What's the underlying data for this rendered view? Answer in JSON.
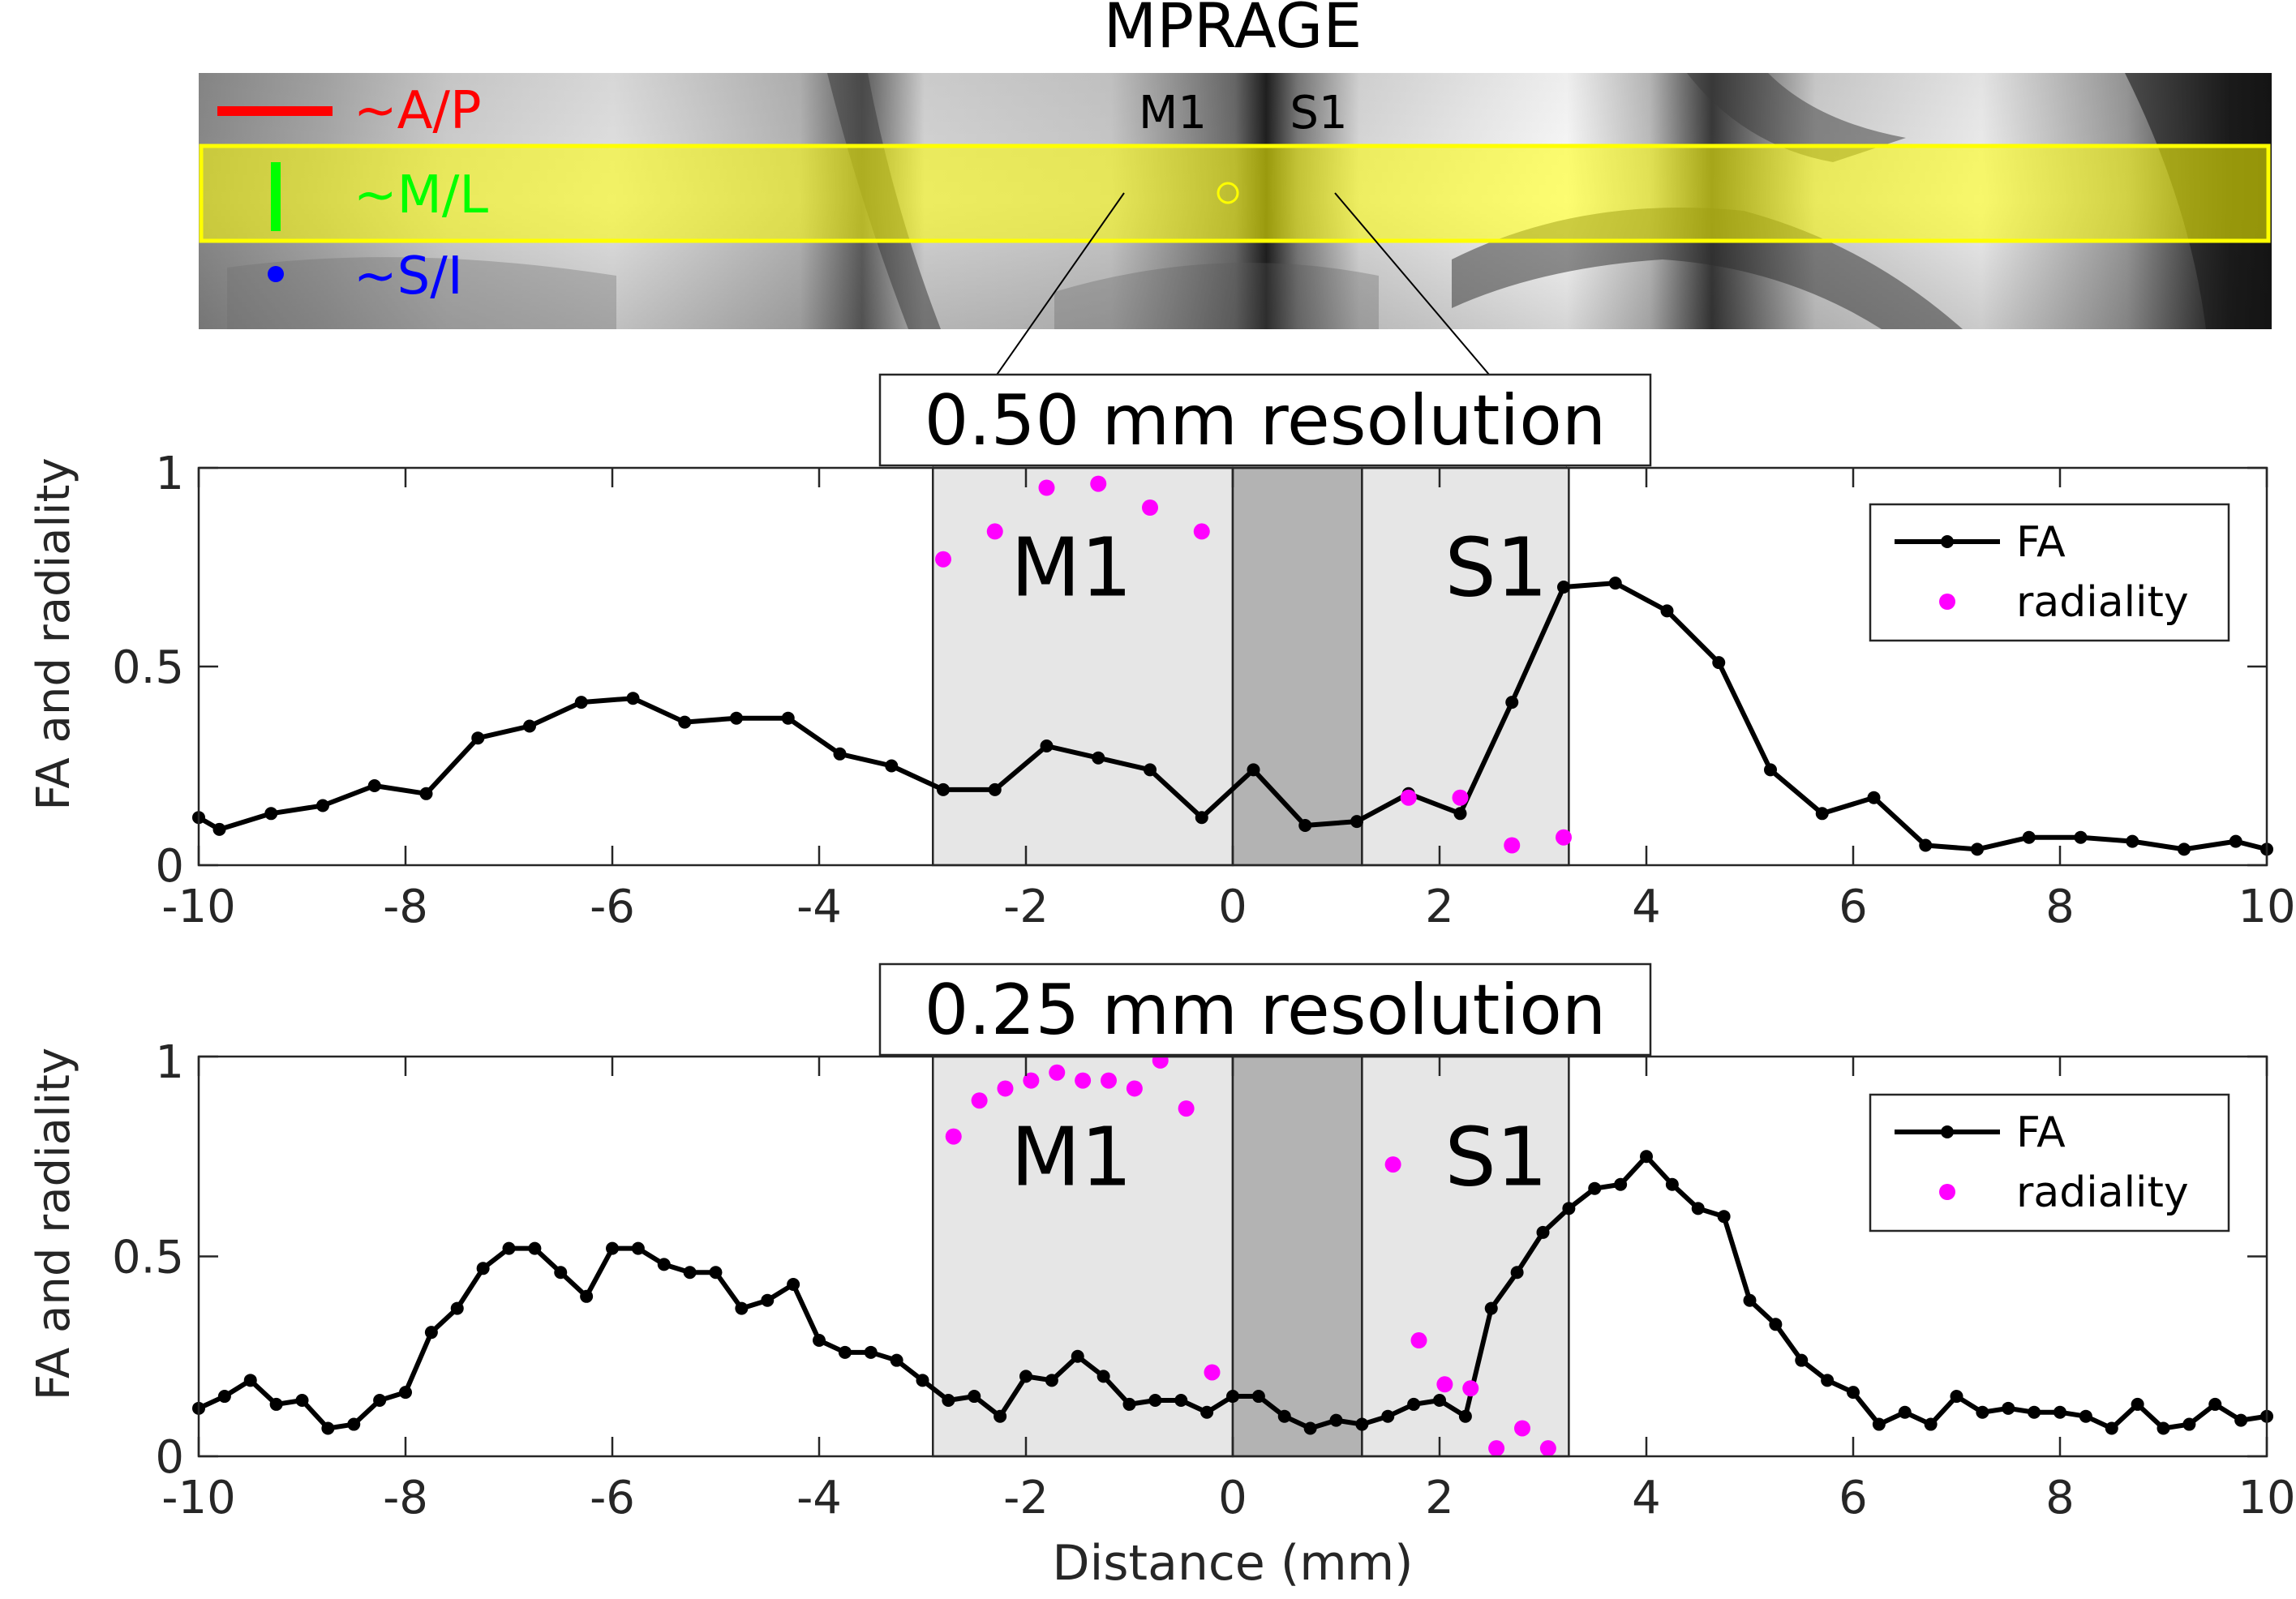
{
  "figure": {
    "mprage_title": "MPRAGE",
    "inset_labels": {
      "m1": "M1",
      "s1": "S1"
    },
    "orientation_legend": [
      {
        "label": "~A/P",
        "color": "#ff0000",
        "glyph": "horizontal-line"
      },
      {
        "label": "~M/L",
        "color": "#00ff00",
        "glyph": "vertical-line"
      },
      {
        "label": "~S/I",
        "color": "#0000ff",
        "glyph": "dot"
      }
    ],
    "roi_color": "#ffff00"
  },
  "chart_data": [
    {
      "type": "line",
      "title": "0.50 mm resolution",
      "xlabel": "",
      "ylabel": "FA and radiality",
      "xlim": [
        -10,
        10
      ],
      "ylim": [
        0,
        1
      ],
      "xticks": [
        "-10",
        "-8",
        "-6",
        "-4",
        "-2",
        "0",
        "2",
        "4",
        "6",
        "8",
        "10"
      ],
      "yticks": [
        "0",
        "0.5",
        "1"
      ],
      "regions": [
        {
          "name": "M1",
          "x0": -2.9,
          "x1": 0,
          "color": "#e6e6e6",
          "label": "M1"
        },
        {
          "name": "sulcus",
          "x0": 0,
          "x1": 1.25,
          "color": "#b3b3b3",
          "label": ""
        },
        {
          "name": "S1",
          "x0": 1.25,
          "x1": 3.25,
          "color": "#e6e6e6",
          "label": "S1"
        }
      ],
      "legend": [
        {
          "label": "FA",
          "color": "#000000",
          "style": "line-marker"
        },
        {
          "label": "radiality",
          "color": "#ff00ff",
          "style": "dot"
        }
      ],
      "series": [
        {
          "name": "FA",
          "color": "#000000",
          "x": [
            -10,
            -9.8,
            -9.3,
            -8.8,
            -8.3,
            -7.8,
            -7.3,
            -6.8,
            -6.3,
            -5.8,
            -5.3,
            -4.8,
            -4.3,
            -3.8,
            -3.3,
            -2.8,
            -2.3,
            -1.8,
            -1.3,
            -0.8,
            -0.3,
            0.2,
            0.7,
            1.2,
            1.7,
            2.2,
            2.7,
            3.2,
            3.7,
            4.2,
            4.7,
            5.2,
            5.7,
            6.2,
            6.7,
            7.2,
            7.7,
            8.2,
            8.7,
            9.2,
            9.7,
            10
          ],
          "y": [
            0.12,
            0.09,
            0.13,
            0.15,
            0.2,
            0.18,
            0.32,
            0.35,
            0.41,
            0.42,
            0.36,
            0.37,
            0.37,
            0.28,
            0.25,
            0.19,
            0.19,
            0.3,
            0.27,
            0.24,
            0.12,
            0.24,
            0.1,
            0.11,
            0.18,
            0.13,
            0.41,
            0.7,
            0.71,
            0.64,
            0.51,
            0.24,
            0.13,
            0.17,
            0.05,
            0.04,
            0.07,
            0.07,
            0.06,
            0.04,
            0.06,
            0.04
          ]
        },
        {
          "name": "radiality",
          "color": "#ff00ff",
          "x": [
            -2.8,
            -2.3,
            -1.8,
            -1.3,
            -0.8,
            -0.3,
            1.7,
            2.2,
            2.7,
            3.2
          ],
          "y": [
            0.77,
            0.84,
            0.95,
            0.96,
            0.9,
            0.84,
            0.17,
            0.17,
            0.05,
            0.07
          ]
        }
      ]
    },
    {
      "type": "line",
      "title": "0.25 mm resolution",
      "xlabel": "Distance (mm)",
      "ylabel": "FA and radiality",
      "xlim": [
        -10,
        10
      ],
      "ylim": [
        0,
        1
      ],
      "xticks": [
        "-10",
        "-8",
        "-6",
        "-4",
        "-2",
        "0",
        "2",
        "4",
        "6",
        "8",
        "10"
      ],
      "yticks": [
        "0",
        "0.5",
        "1"
      ],
      "regions": [
        {
          "name": "M1",
          "x0": -2.9,
          "x1": 0,
          "color": "#e6e6e6",
          "label": "M1"
        },
        {
          "name": "sulcus",
          "x0": 0,
          "x1": 1.25,
          "color": "#b3b3b3",
          "label": ""
        },
        {
          "name": "S1",
          "x0": 1.25,
          "x1": 3.25,
          "color": "#e6e6e6",
          "label": "S1"
        }
      ],
      "legend": [
        {
          "label": "FA",
          "color": "#000000",
          "style": "line-marker"
        },
        {
          "label": "radiality",
          "color": "#ff00ff",
          "style": "dot"
        }
      ],
      "series": [
        {
          "name": "FA",
          "color": "#000000",
          "x": [
            -10,
            -9.75,
            -9.5,
            -9.25,
            -9,
            -8.75,
            -8.5,
            -8.25,
            -8,
            -7.75,
            -7.5,
            -7.25,
            -7,
            -6.75,
            -6.5,
            -6.25,
            -6,
            -5.75,
            -5.5,
            -5.25,
            -5,
            -4.75,
            -4.5,
            -4.25,
            -4,
            -3.75,
            -3.5,
            -3.25,
            -3,
            -2.75,
            -2.5,
            -2.25,
            -2,
            -1.75,
            -1.5,
            -1.25,
            -1,
            -0.75,
            -0.5,
            -0.25,
            0,
            0.25,
            0.5,
            0.75,
            1,
            1.25,
            1.5,
            1.75,
            2,
            2.25,
            2.5,
            2.75,
            3,
            3.25,
            3.5,
            3.75,
            4,
            4.25,
            4.5,
            4.75,
            5,
            5.25,
            5.5,
            5.75,
            6,
            6.25,
            6.5,
            6.75,
            7,
            7.25,
            7.5,
            7.75,
            8,
            8.25,
            8.5,
            8.75,
            9,
            9.25,
            9.5,
            9.75,
            10
          ],
          "y": [
            0.12,
            0.15,
            0.19,
            0.13,
            0.14,
            0.07,
            0.08,
            0.14,
            0.16,
            0.31,
            0.37,
            0.47,
            0.52,
            0.52,
            0.46,
            0.4,
            0.52,
            0.52,
            0.48,
            0.46,
            0.46,
            0.37,
            0.39,
            0.43,
            0.29,
            0.26,
            0.26,
            0.24,
            0.19,
            0.14,
            0.15,
            0.1,
            0.2,
            0.19,
            0.25,
            0.2,
            0.13,
            0.14,
            0.14,
            0.11,
            0.15,
            0.15,
            0.1,
            0.07,
            0.09,
            0.08,
            0.1,
            0.13,
            0.14,
            0.1,
            0.37,
            0.46,
            0.56,
            0.62,
            0.67,
            0.68,
            0.75,
            0.68,
            0.62,
            0.6,
            0.39,
            0.33,
            0.24,
            0.19,
            0.16,
            0.08,
            0.11,
            0.08,
            0.15,
            0.11,
            0.12,
            0.11,
            0.11,
            0.1,
            0.07,
            0.13,
            0.07,
            0.08,
            0.13,
            0.09,
            0.1
          ]
        },
        {
          "name": "radiality",
          "color": "#ff00ff",
          "x": [
            -2.7,
            -2.45,
            -2.2,
            -1.95,
            -1.7,
            -1.45,
            -1.2,
            -0.95,
            -0.7,
            -0.45,
            -0.2,
            1.55,
            1.8,
            2.05,
            2.3,
            2.55,
            2.8,
            3.05
          ],
          "y": [
            0.8,
            0.89,
            0.92,
            0.94,
            0.96,
            0.94,
            0.94,
            0.92,
            0.99,
            0.87,
            0.21,
            0.73,
            0.29,
            0.18,
            0.17,
            0.02,
            0.07,
            0.02
          ]
        }
      ]
    }
  ]
}
